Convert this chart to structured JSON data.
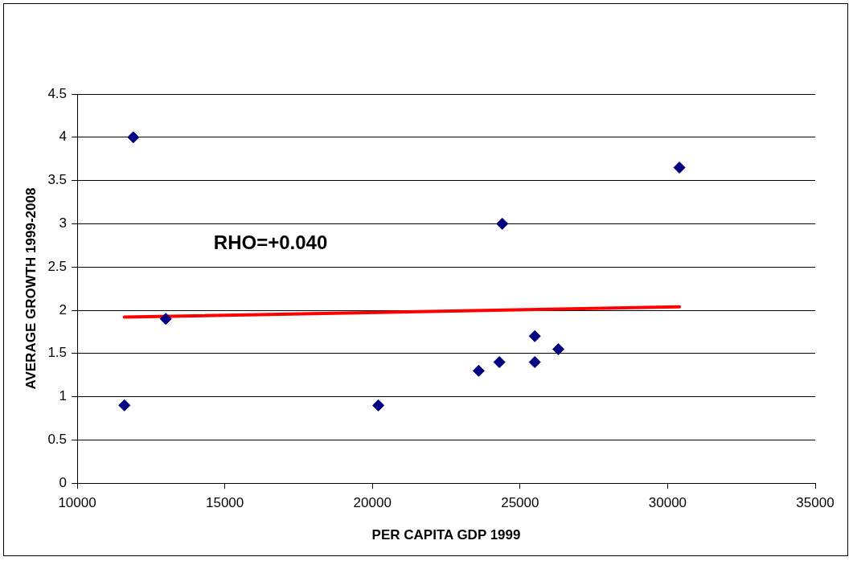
{
  "chart_data": {
    "type": "scatter",
    "xlabel": "PER CAPITA GDP 1999",
    "ylabel": "AVERAGE GROWTH 1999-2008",
    "grid": "y",
    "legend": false,
    "xlim": [
      10000,
      35000
    ],
    "xticks": [
      10000,
      15000,
      20000,
      25000,
      30000,
      35000
    ],
    "ylim": [
      0,
      4.5
    ],
    "yticks": [
      0,
      0.5,
      1,
      1.5,
      2,
      2.5,
      3,
      3.5,
      4,
      4.5
    ],
    "annotations": [
      "RHO=+0.040"
    ],
    "series": [
      {
        "marker": "diamond",
        "color": "#000080",
        "x": [
          11600,
          11900,
          13000,
          20200,
          23600,
          24300,
          24400,
          25500,
          25500,
          26300,
          30400
        ],
        "values": [
          0.9,
          4.0,
          1.9,
          0.9,
          1.3,
          1.4,
          3.0,
          1.7,
          1.4,
          1.55,
          3.65
        ]
      },
      {
        "type": "line",
        "marker": "none",
        "color": "#ff0000",
        "x": [
          11600,
          30400
        ],
        "values": [
          1.92,
          2.04
        ]
      }
    ]
  }
}
